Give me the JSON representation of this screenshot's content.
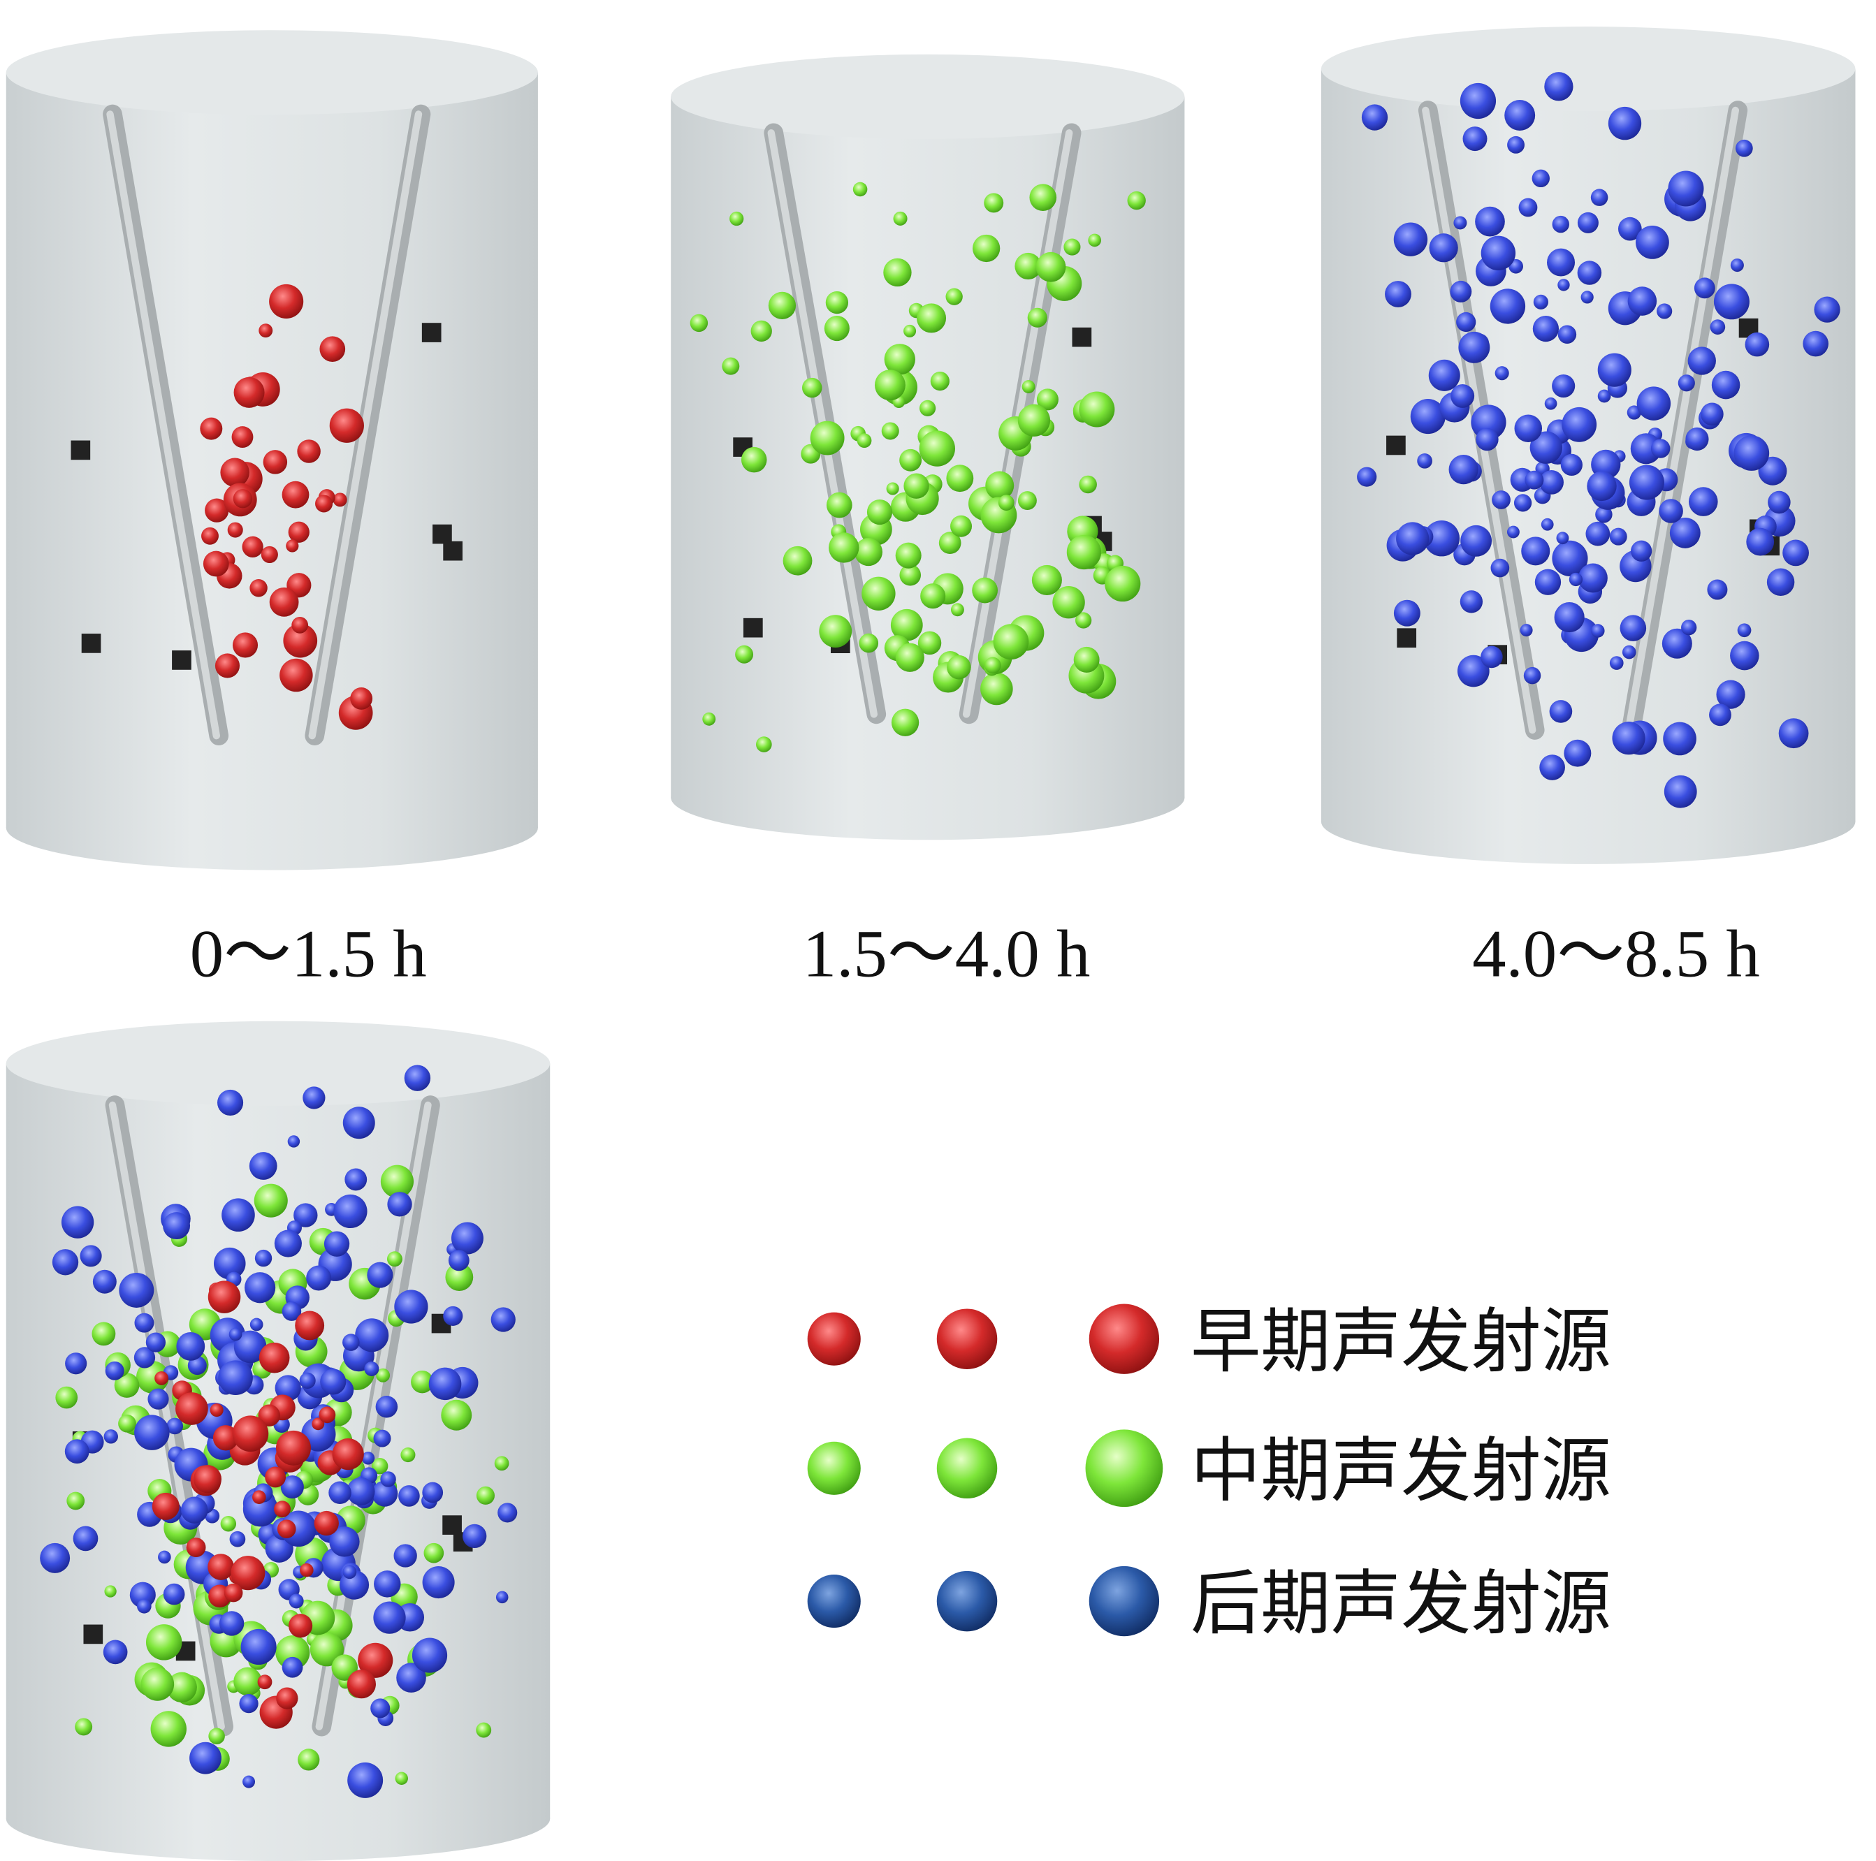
{
  "panels": [
    {
      "label": "0～1.5 h"
    },
    {
      "label": "1.5～4.0 h"
    },
    {
      "label": "4.0～8.5 h"
    }
  ],
  "legend": [
    {
      "label": "早期声发射源"
    },
    {
      "label": "中期声发射源"
    },
    {
      "label": "后期声发射源"
    }
  ]
}
